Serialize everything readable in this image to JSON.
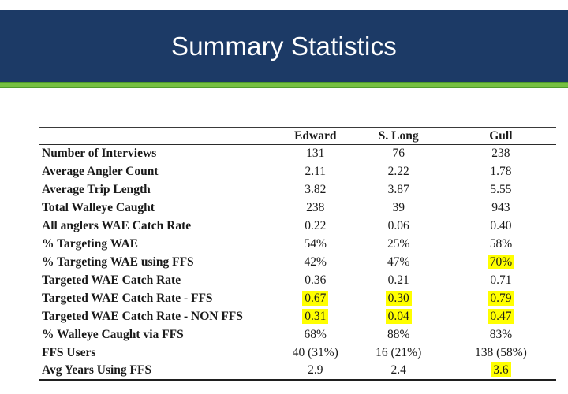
{
  "slide": {
    "title": "Summary Statistics",
    "colors": {
      "header_bg": "#1c3a66",
      "accent_bar": "#76c041",
      "accent_bar_edge": "#4f9a2c",
      "highlight": "#ffff00",
      "text": "#1a1a1a"
    }
  },
  "table": {
    "columns": [
      "",
      "Edward",
      "S. Long",
      "Gull"
    ],
    "rows": [
      {
        "label": "Number of Interviews",
        "values": [
          "131",
          "76",
          "238"
        ],
        "highlight": [
          false,
          false,
          false
        ]
      },
      {
        "label": "Average Angler Count",
        "values": [
          "2.11",
          "2.22",
          "1.78"
        ],
        "highlight": [
          false,
          false,
          false
        ]
      },
      {
        "label": "Average Trip Length",
        "values": [
          "3.82",
          "3.87",
          "5.55"
        ],
        "highlight": [
          false,
          false,
          false
        ]
      },
      {
        "label": "Total Walleye Caught",
        "values": [
          "238",
          "39",
          "943"
        ],
        "highlight": [
          false,
          false,
          false
        ]
      },
      {
        "label": "All anglers WAE Catch Rate",
        "values": [
          "0.22",
          "0.06",
          "0.40"
        ],
        "highlight": [
          false,
          false,
          false
        ]
      },
      {
        "label": "% Targeting WAE",
        "values": [
          "54%",
          "25%",
          "58%"
        ],
        "highlight": [
          false,
          false,
          false
        ]
      },
      {
        "label": "% Targeting WAE using FFS",
        "values": [
          "42%",
          "47%",
          "70%"
        ],
        "highlight": [
          false,
          false,
          true
        ]
      },
      {
        "label": "Targeted WAE Catch Rate",
        "values": [
          "0.36",
          "0.21",
          "0.71"
        ],
        "highlight": [
          false,
          false,
          false
        ]
      },
      {
        "label": "Targeted WAE Catch Rate - FFS",
        "values": [
          "0.67",
          "0.30",
          "0.79"
        ],
        "highlight": [
          true,
          true,
          true
        ]
      },
      {
        "label": "Targeted WAE Catch Rate - NON FFS",
        "values": [
          "0.31",
          "0.04",
          "0.47"
        ],
        "highlight": [
          true,
          true,
          true
        ]
      },
      {
        "label": "% Walleye Caught via FFS",
        "values": [
          "68%",
          "88%",
          "83%"
        ],
        "highlight": [
          false,
          false,
          false
        ]
      },
      {
        "label": "FFS Users",
        "values": [
          "40 (31%)",
          "16 (21%)",
          "138 (58%)"
        ],
        "highlight": [
          false,
          false,
          false
        ]
      },
      {
        "label": "Avg Years Using FFS",
        "values": [
          "2.9",
          "2.4",
          "3.6"
        ],
        "highlight": [
          false,
          false,
          true
        ]
      }
    ]
  }
}
